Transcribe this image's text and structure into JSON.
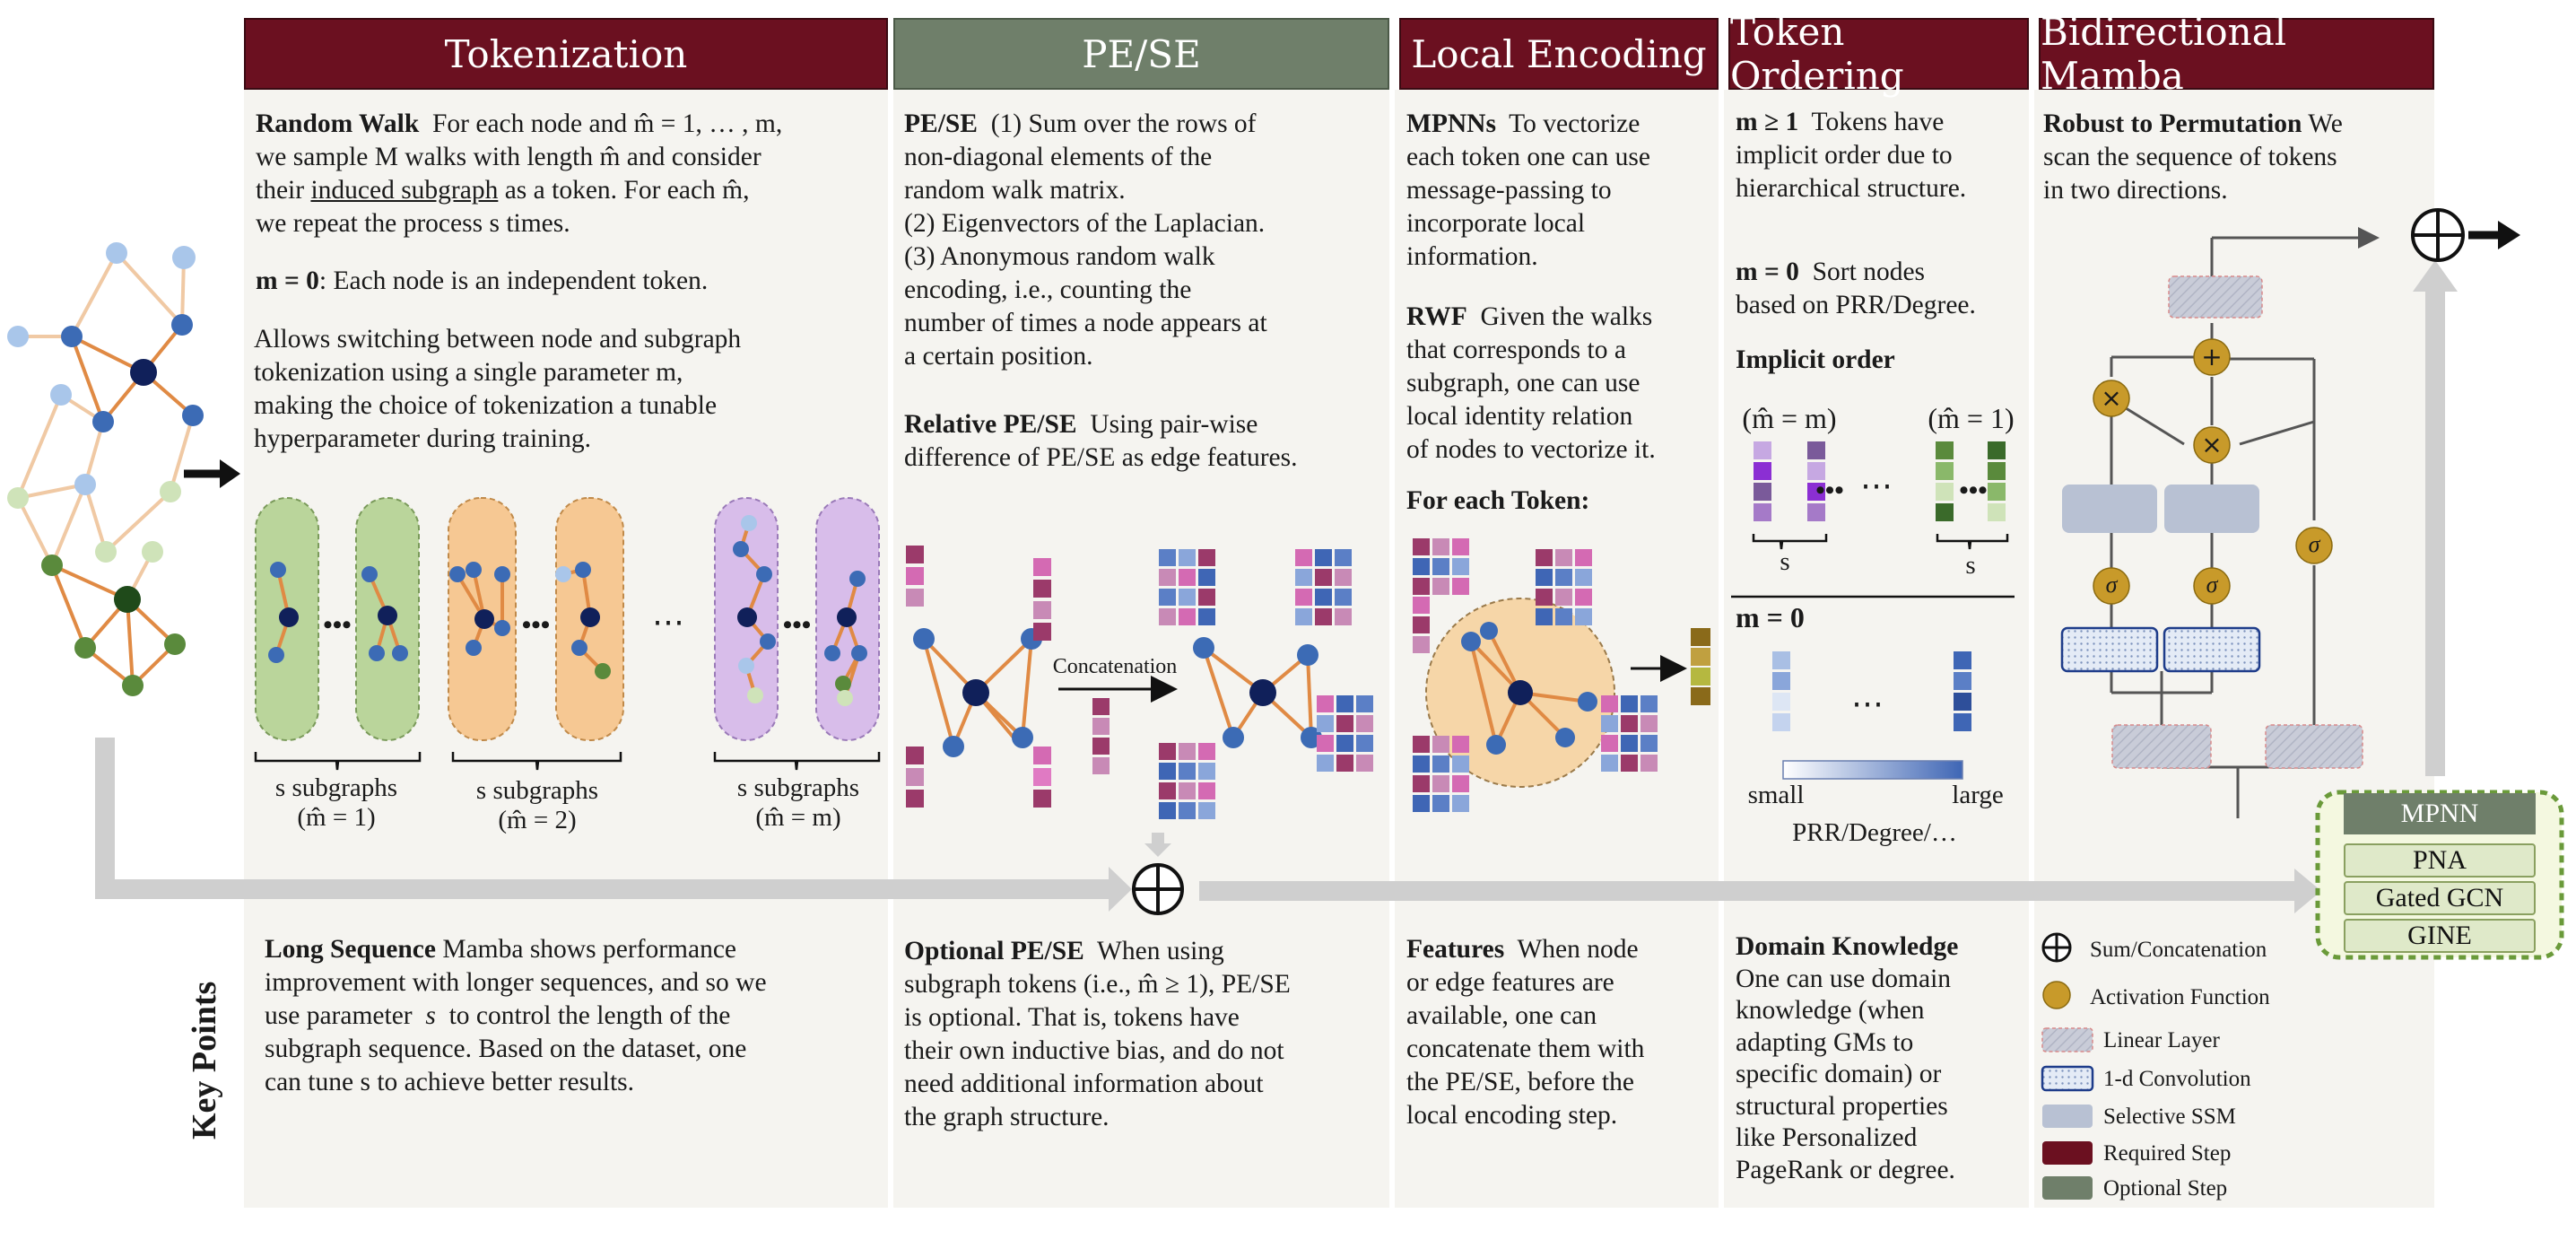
{
  "headers": {
    "tokenization": "Tokenization",
    "pese": "PE/SE",
    "local_encoding": "Local Encoding",
    "token_ordering": "Token Ordering",
    "bidirectional_mamba": "Bidirectional Mamba"
  },
  "tokenization": {
    "random_walk_title": "Random Walk",
    "random_walk_text_1": "For each node and m̂ = 1, … , m,",
    "random_walk_text_2": "we sample M walks with length m̂ and consider",
    "random_walk_text_3a": "their",
    "random_walk_text_3b": "induced subgraph",
    "random_walk_text_3c": "as a token. For each m̂,",
    "random_walk_text_4": "we repeat the process s times.",
    "m0_title": "m = 0",
    "m0_text": ": Each node is an independent token.",
    "switch_text_1": "Allows switching between node and subgraph",
    "switch_text_2": "tokenization using a single parameter m,",
    "switch_text_3": "making the choice of tokenization a tunable",
    "switch_text_4": "hyperparameter during training.",
    "group1_label": "s subgraphs",
    "group1_sub": "(m̂ = 1)",
    "group2_label": "s subgraphs",
    "group2_sub": "(m̂ = 2)",
    "group3_label": "s subgraphs",
    "group3_sub": "(m̂ = m)",
    "dots": "⋯",
    "dots_small": "•••"
  },
  "pese": {
    "pese_title": "PE/SE",
    "pese_text_1": "(1) Sum over the rows of",
    "pese_text_2": "non-diagonal elements of the",
    "pese_text_3": "random walk matrix.",
    "pese_text_4": "(2) Eigenvectors of the Laplacian.",
    "pese_text_5": "(3) Anonymous random walk",
    "pese_text_6": "encoding, i.e., counting the",
    "pese_text_7": "number of times a node appears at",
    "pese_text_8": "a certain position.",
    "relative_title": "Relative PE/SE",
    "relative_text_1": "Using pair-wise",
    "relative_text_2": "difference of PE/SE as edge features.",
    "concat_label": "Concatenation"
  },
  "local_encoding": {
    "mpnn_title": "MPNNs",
    "mpnn_text_1": "To vectorize",
    "mpnn_text_2": "each token one can use",
    "mpnn_text_3": "message-passing to",
    "mpnn_text_4": "incorporate local",
    "mpnn_text_5": "information.",
    "rwf_title": "RWF",
    "rwf_text_1": "Given the walks",
    "rwf_text_2": "that corresponds to a",
    "rwf_text_3": "subgraph, one can use",
    "rwf_text_4": "local identity relation",
    "rwf_text_5": "of nodes to vectorize it.",
    "for_each": "For each Token:"
  },
  "token_ordering": {
    "m1_title": "m ≥ 1",
    "m1_text_1": "Tokens have",
    "m1_text_2": "implicit order due to",
    "m1_text_3": "hierarchical structure.",
    "m0_title": "m = 0",
    "m0_text_1": "Sort nodes",
    "m0_text_2": "based on PRR/Degree.",
    "implicit_order": "Implicit order",
    "col_left": "(m̂ = m)",
    "col_right": "(m̂ = 1)",
    "s_left": "s",
    "s_right": "s",
    "m0_section": "m = 0",
    "small": "small",
    "large": "large",
    "prr_label": "PRR/Degree/…"
  },
  "mamba": {
    "robust_title": "Robust to Permutation",
    "robust_text_1": "We",
    "robust_text_2": "scan the sequence of tokens",
    "robust_text_3": "in two directions.",
    "plus": "+",
    "times": "×",
    "sigma": "σ"
  },
  "mpnn_box": {
    "title": "MPNN",
    "items": [
      "PNA",
      "Gated GCN",
      "GINE"
    ]
  },
  "key_points": {
    "side_label": "Key Points",
    "long_title": "Long Sequence",
    "long_text_1": "Mamba shows performance",
    "long_text_2": "improvement with longer sequences,  and so we",
    "long_text_3a": "use parameter",
    "long_text_3b": "s",
    "long_text_3c": "to control the length of the",
    "long_text_4": "subgraph sequence. Based on the dataset, one",
    "long_text_5": "can tune s to achieve better results.",
    "optional_title": "Optional PE/SE",
    "optional_text_1": "When using",
    "optional_text_2": "subgraph tokens (i.e., m̂ ≥ 1), PE/SE",
    "optional_text_3": "is optional. That is, tokens have",
    "optional_text_4": "their own inductive bias, and do not",
    "optional_text_5": "need additional information about",
    "optional_text_6": "the graph structure.",
    "features_title": "Features",
    "features_text_1": "When  node",
    "features_text_2": "or edge features are",
    "features_text_3": "available, one can",
    "features_text_4": "concatenate them with",
    "features_text_5": "the PE/SE, before the",
    "features_text_6": "local encoding step.",
    "domain_title": "Domain Knowledge",
    "domain_text_1": "One can use domain",
    "domain_text_2": "knowledge (when",
    "domain_text_3": "adapting GMs to",
    "domain_text_4": "specific domain) or",
    "domain_text_5": "structural properties",
    "domain_text_6": "like Personalized",
    "domain_text_7": "PageRank or degree."
  },
  "legend": {
    "items": [
      {
        "icon": "sum-concat-icon",
        "label": "Sum/Concatenation"
      },
      {
        "icon": "activation-icon",
        "label": "Activation Function"
      },
      {
        "icon": "linear-layer-icon",
        "label": "Linear Layer"
      },
      {
        "icon": "conv-icon",
        "label": "1-d Convolution"
      },
      {
        "icon": "ssm-icon",
        "label": "Selective SSM"
      },
      {
        "icon": "required-icon",
        "label": "Required Step"
      },
      {
        "icon": "optional-icon",
        "label": "Optional Step"
      }
    ]
  },
  "colors": {
    "required": "#6b1020",
    "optional": "#6f7f6a",
    "edge": "#d97b33",
    "green_group": "#b9d49a",
    "orange_group": "#f6c894",
    "purple_group": "#d9c0ea"
  }
}
